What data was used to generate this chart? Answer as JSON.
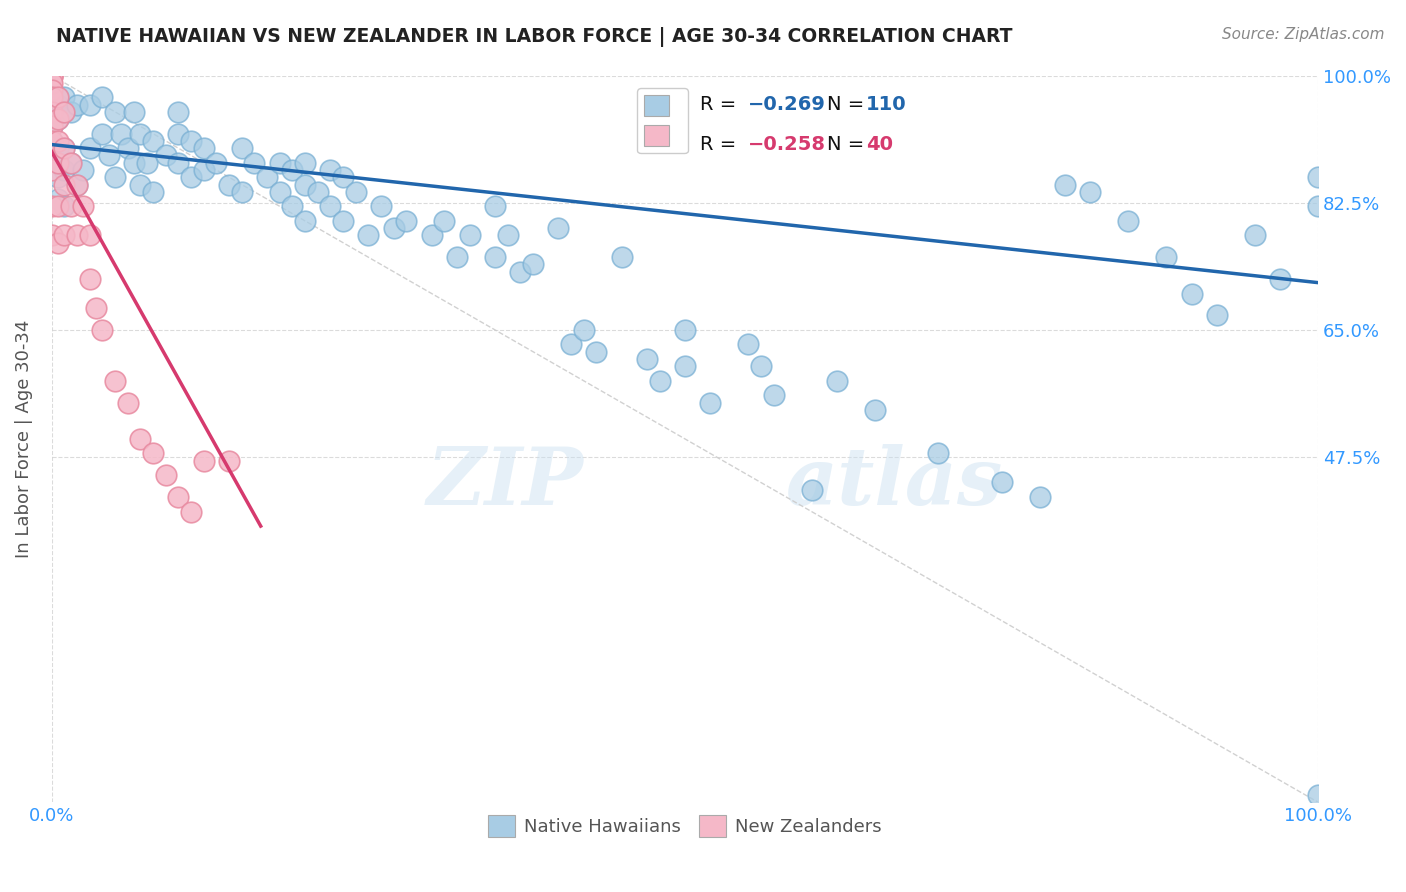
{
  "title": "NATIVE HAWAIIAN VS NEW ZEALANDER IN LABOR FORCE | AGE 30-34 CORRELATION CHART",
  "source": "Source: ZipAtlas.com",
  "ylabel": "In Labor Force | Age 30-34",
  "legend_blue_label": "Native Hawaiians",
  "legend_pink_label": "New Zealanders",
  "watermark_zip": "ZIP",
  "watermark_atlas": "atlas",
  "blue_color": "#a8cce4",
  "blue_edge_color": "#7ab0d4",
  "pink_color": "#f5b8c8",
  "pink_edge_color": "#e88aa0",
  "blue_line_color": "#2166ac",
  "pink_line_color": "#d63a6e",
  "diag_color": "#cccccc",
  "grid_color": "#cccccc",
  "background_color": "#ffffff",
  "tick_color": "#3399ff",
  "ylabel_color": "#555555",
  "title_color": "#222222",
  "source_color": "#888888",
  "blue_scatter_x": [
    0.0,
    0.0,
    0.0,
    0.0,
    0.0,
    0.005,
    0.005,
    0.005,
    0.005,
    0.005,
    0.005,
    0.005,
    0.01,
    0.01,
    0.01,
    0.01,
    0.01,
    0.015,
    0.015,
    0.02,
    0.02,
    0.025,
    0.03,
    0.03,
    0.04,
    0.04,
    0.045,
    0.05,
    0.05,
    0.055,
    0.06,
    0.065,
    0.065,
    0.07,
    0.07,
    0.075,
    0.08,
    0.08,
    0.09,
    0.1,
    0.1,
    0.1,
    0.11,
    0.11,
    0.12,
    0.12,
    0.13,
    0.14,
    0.15,
    0.15,
    0.16,
    0.17,
    0.18,
    0.18,
    0.19,
    0.19,
    0.2,
    0.2,
    0.2,
    0.21,
    0.22,
    0.22,
    0.23,
    0.23,
    0.24,
    0.25,
    0.26,
    0.27,
    0.28,
    0.3,
    0.31,
    0.32,
    0.33,
    0.35,
    0.35,
    0.36,
    0.37,
    0.38,
    0.4,
    0.41,
    0.42,
    0.43,
    0.45,
    0.47,
    0.48,
    0.5,
    0.5,
    0.52,
    0.55,
    0.56,
    0.57,
    0.6,
    0.62,
    0.65,
    0.7,
    0.75,
    0.78,
    0.8,
    0.82,
    0.85,
    0.88,
    0.9,
    0.92,
    0.95,
    0.97,
    1.0,
    1.0,
    1.0
  ],
  "blue_scatter_y": [
    0.97,
    0.96,
    0.95,
    0.93,
    0.91,
    0.97,
    0.96,
    0.94,
    0.9,
    0.88,
    0.86,
    0.83,
    0.97,
    0.95,
    0.9,
    0.87,
    0.82,
    0.95,
    0.88,
    0.96,
    0.85,
    0.87,
    0.96,
    0.9,
    0.97,
    0.92,
    0.89,
    0.95,
    0.86,
    0.92,
    0.9,
    0.95,
    0.88,
    0.92,
    0.85,
    0.88,
    0.91,
    0.84,
    0.89,
    0.95,
    0.92,
    0.88,
    0.91,
    0.86,
    0.9,
    0.87,
    0.88,
    0.85,
    0.9,
    0.84,
    0.88,
    0.86,
    0.88,
    0.84,
    0.87,
    0.82,
    0.85,
    0.8,
    0.88,
    0.84,
    0.87,
    0.82,
    0.86,
    0.8,
    0.84,
    0.78,
    0.82,
    0.79,
    0.8,
    0.78,
    0.8,
    0.75,
    0.78,
    0.82,
    0.75,
    0.78,
    0.73,
    0.74,
    0.79,
    0.63,
    0.65,
    0.62,
    0.75,
    0.61,
    0.58,
    0.65,
    0.6,
    0.55,
    0.63,
    0.6,
    0.56,
    0.43,
    0.58,
    0.54,
    0.48,
    0.44,
    0.42,
    0.85,
    0.84,
    0.8,
    0.75,
    0.7,
    0.67,
    0.78,
    0.72,
    0.86,
    0.82,
    0.01
  ],
  "pink_scatter_x": [
    0.0,
    0.0,
    0.0,
    0.0,
    0.0,
    0.0,
    0.0,
    0.0,
    0.0,
    0.0,
    0.0,
    0.0,
    0.005,
    0.005,
    0.005,
    0.005,
    0.005,
    0.005,
    0.01,
    0.01,
    0.01,
    0.01,
    0.015,
    0.015,
    0.02,
    0.02,
    0.025,
    0.03,
    0.03,
    0.035,
    0.04,
    0.05,
    0.06,
    0.07,
    0.08,
    0.09,
    0.1,
    0.11,
    0.12,
    0.14
  ],
  "pink_scatter_y": [
    1.0,
    1.0,
    1.0,
    0.99,
    0.98,
    0.97,
    0.95,
    0.93,
    0.91,
    0.87,
    0.82,
    0.78,
    0.97,
    0.94,
    0.91,
    0.88,
    0.82,
    0.77,
    0.95,
    0.9,
    0.85,
    0.78,
    0.88,
    0.82,
    0.85,
    0.78,
    0.82,
    0.78,
    0.72,
    0.68,
    0.65,
    0.58,
    0.55,
    0.5,
    0.48,
    0.45,
    0.42,
    0.4,
    0.47,
    0.47
  ],
  "xlim": [
    0.0,
    1.0
  ],
  "ylim": [
    0.0,
    1.0
  ],
  "ytick_positions": [
    0.475,
    0.65,
    0.825,
    1.0
  ],
  "ytick_labels": [
    "47.5%",
    "65.0%",
    "82.5%",
    "100.0%"
  ],
  "blue_trend_x": [
    0.0,
    1.0
  ],
  "blue_trend_y_start": 0.905,
  "blue_trend_y_end": 0.715,
  "pink_trend_x": [
    0.0,
    0.165
  ],
  "pink_trend_y_start": 0.895,
  "pink_trend_y_end": 0.38
}
